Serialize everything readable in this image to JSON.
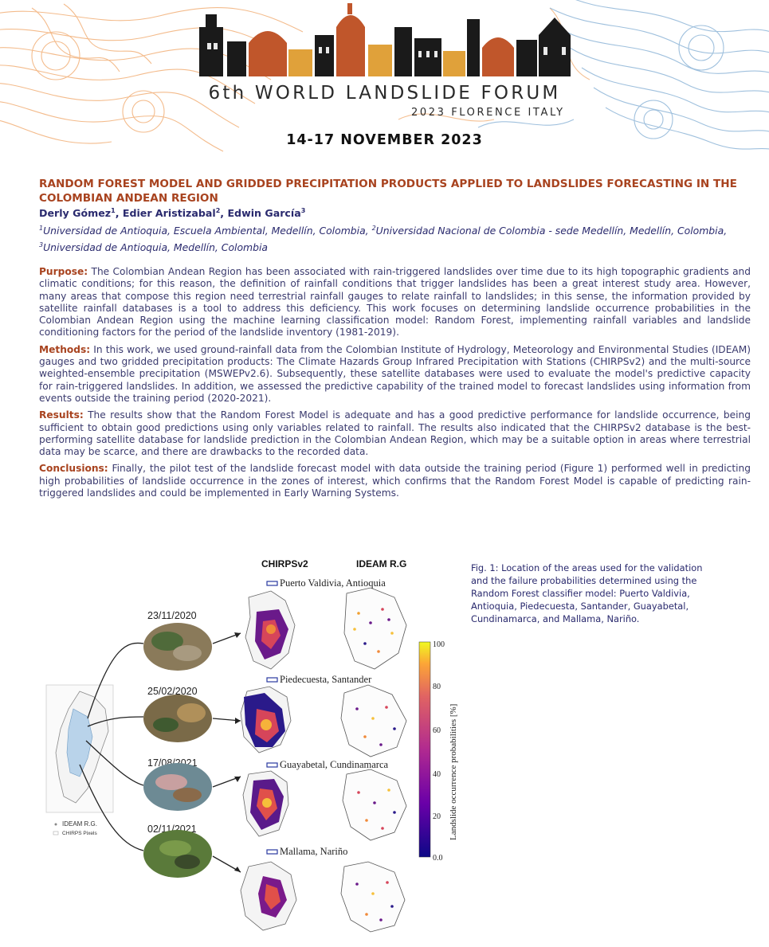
{
  "header": {
    "forum_title": "6th WORLD LANDSLIDE FORUM",
    "forum_subtitle": "2023 FLORENCE ITALY",
    "event_dates": "14-17 NOVEMBER 2023"
  },
  "paper": {
    "title": "RANDOM FOREST MODEL AND GRIDDED PRECIPITATION PRODUCTS APPLIED TO LANDSLIDES FORECASTING IN THE COLOMBIAN ANDEAN REGION",
    "authors": [
      {
        "name": "Derly Gómez",
        "sup": "1"
      },
      {
        "name": "Edier Aristizabal",
        "sup": "2"
      },
      {
        "name": "Edwin García",
        "sup": "3"
      }
    ],
    "affiliations": [
      {
        "sup": "1",
        "text": "Universidad de Antioquia, Escuela Ambiental, Medellín, Colombia, "
      },
      {
        "sup": "2",
        "text": "Universidad Nacional de Colombia - sede Medellín, Medellín, Colombia, "
      },
      {
        "sup": "3",
        "text": "Universidad de Antioquia, Medellín, Colombia"
      }
    ]
  },
  "sections": {
    "purpose": {
      "label": "Purpose:",
      "text": "The Colombian Andean Region has been associated with rain-triggered landslides over time due to its high topographic gradients and climatic conditions; for this reason, the definition of rainfall conditions that trigger landslides has been a great interest study area. However, many areas that compose this region need terrestrial rainfall gauges to relate rainfall to landslides; in this sense, the information provided by satellite rainfall databases is a tool to address this deficiency. This work focuses on determining landslide occurrence probabilities in the Colombian Andean Region using the machine learning classification model: Random Forest, implementing rainfall variables and landslide conditioning factors for the period of the landslide inventory (1981-2019)."
    },
    "methods": {
      "label": "Methods:",
      "text": "In this work, we used ground-rainfall data from the Colombian Institute of Hydrology, Meteorology and Environmental Studies (IDEAM) gauges and two gridded precipitation products: The Climate Hazards Group Infrared Precipitation with Stations (CHIRPSv2) and the multi-source weighted-ensemble precipitation (MSWEPv2.6). Subsequently, these satellite databases were used to evaluate the model's predictive capacity for rain-triggered landslides. In addition, we assessed the predictive capability of the trained model to forecast landslides using information from events outside the training period (2020-2021)."
    },
    "results": {
      "label": "Results:",
      "text": "The results show that the Random Forest Model is adequate and has a good predictive performance for landslide occurrence, being sufficient to obtain good predictions using only variables related to rainfall. The results also indicated that the CHIRPSv2 database is the best-performing satellite database for landslide prediction in the Colombian Andean Region, which may be a suitable option in areas where terrestrial data may be scarce, and there are drawbacks to the recorded data."
    },
    "conclusions": {
      "label": "Conclusions:",
      "text": "Finally, the pilot test of the landslide forecast model with data outside the training period (Figure 1) performed well in predicting high probabilities of landslide occurrence in the zones of interest, which confirms that the Random Forest Model is capable of predicting rain-triggered landslides and could be implemented in Early Warning Systems."
    }
  },
  "figure": {
    "col_left": "CHIRPSv2",
    "col_right": "IDEAM R.G",
    "sites": [
      "Puerto Valdivia, Antioquia",
      "Piedecuesta, Santander",
      "Guayabetal, Cundinamarca",
      "Mallama, Nariño"
    ],
    "dates": [
      "23/11/2020",
      "25/02/2020",
      "17/08/2021",
      "02/11/2021"
    ],
    "legend_ideam": "IDEAM R.G.",
    "legend_chirps": "CHIRPS Pixels",
    "colorbar_label": "Landslide occurrence probabilities [%]",
    "colorbar_ticks": [
      "100",
      "80",
      "60",
      "40",
      "20",
      "0.0"
    ],
    "caption": "Fig. 1: Location of the areas used for the validation and the failure probabilities determined using the Random Forest classifier model: Puerto Valdivia, Antioquia, Piedecuesta, Santander, Guayabetal, Cundinamarca, and Mallama, Nariño."
  },
  "colors": {
    "accent": "#a8431f",
    "body_text": "#3a3a6e",
    "contour_orange": "#f0a060",
    "contour_blue": "#8fb6d8"
  }
}
